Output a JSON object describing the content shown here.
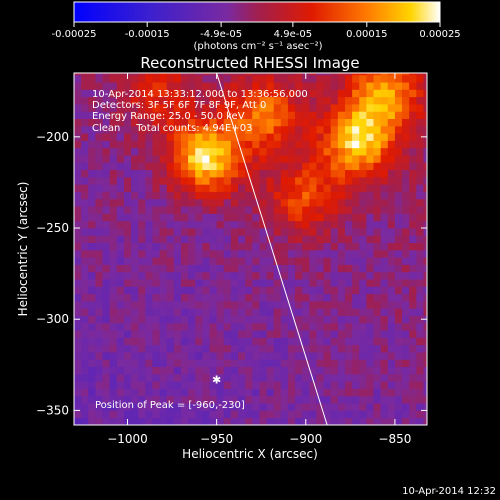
{
  "colorbar": {
    "ticks": [
      "-0.00025",
      "-0.00015",
      "-4.9e-05",
      "4.9e-05",
      "0.00015",
      "0.00025"
    ],
    "tick_values": [
      -0.00025,
      -0.00015,
      -4.9e-05,
      4.9e-05,
      0.00015,
      0.00025
    ],
    "units_label": "(photons cm⁻² s⁻¹ asec⁻²)",
    "range": [
      -0.00025,
      0.00025
    ]
  },
  "chart_data": {
    "type": "heatmap",
    "title": "Reconstructed RHESSI Image",
    "xlabel": "Heliocentric X (arcsec)",
    "ylabel": "Heliocentric Y (arcsec)",
    "xlim": [
      -1030,
      -832
    ],
    "ylim": [
      -358,
      -165
    ],
    "x_ticks": [
      -1000,
      -950,
      -900,
      -850
    ],
    "y_ticks": [
      -200,
      -250,
      -300,
      -350
    ],
    "x_tick_labels": [
      "−1000",
      "−950",
      "−900",
      "−850"
    ],
    "y_tick_labels": [
      "−200",
      "−250",
      "−300",
      "−350"
    ],
    "colorscale": "rainbow (blue–purple–red–yellow–white)",
    "info_lines": [
      "10-Apr-2014 13:33:12.000 to 13:36:56.000",
      "Detectors: 3F 5F 6F 7F 8F 9F, Att 0",
      "Energy Range: 25.0 - 50.0 keV",
      "Clean     Total counts: 4.94E+03"
    ],
    "peak_label": "Position of Peak = [-960,-230]",
    "peak": {
      "x": -960,
      "y": -230
    },
    "limb_line": [
      [
        -950,
        -165
      ],
      [
        -888,
        -358
      ]
    ],
    "sources": [
      {
        "x": -958,
        "y": -213,
        "amplitude": 0.00025
      },
      {
        "x": -925,
        "y": -190,
        "amplitude": 0.00016
      },
      {
        "x": -873,
        "y": -205,
        "amplitude": 0.00022
      },
      {
        "x": -858,
        "y": -178,
        "amplitude": 0.00018
      },
      {
        "x": -903,
        "y": -235,
        "amplitude": 0.00013
      },
      {
        "x": -985,
        "y": -178,
        "amplitude": 9e-05
      }
    ]
  },
  "footer": {
    "timestamp": "10-Apr-2014 12:32"
  }
}
